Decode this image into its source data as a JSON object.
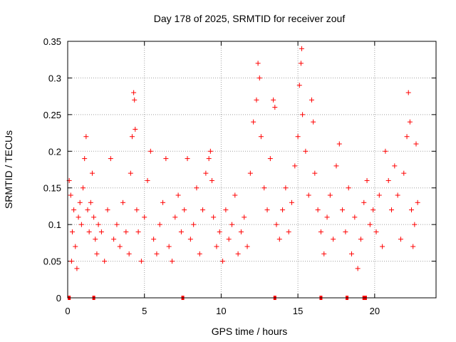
{
  "chart_data": {
    "type": "scatter",
    "title": "Day 178 of 2025, SRMTID for receiver zouf",
    "xlabel": "GPS time / hours",
    "ylabel": "SRMTID / TECUs",
    "xlim": [
      0,
      24
    ],
    "ylim": [
      0,
      0.35
    ],
    "grid": true,
    "marker": "+",
    "color": "#ff0000",
    "xticks": [
      "0",
      "5",
      "10",
      "15",
      "20"
    ],
    "xtick_values": [
      0,
      5,
      10,
      15,
      20
    ],
    "yticks": [
      "0",
      "0.05",
      "0.1",
      "0.15",
      "0.2",
      "0.25",
      "0.3",
      "0.35"
    ],
    "ytick_values": [
      0,
      0.05,
      0.1,
      0.15,
      0.2,
      0.25,
      0.3,
      0.35
    ],
    "series": [
      {
        "values_xy": [
          [
            0.1,
            0.16
          ],
          [
            0.2,
            0.14
          ],
          [
            0.25,
            0.05
          ],
          [
            0.3,
            0.09
          ],
          [
            0.4,
            0.12
          ],
          [
            0.5,
            0.07
          ],
          [
            0.6,
            0.04
          ],
          [
            0.7,
            0.11
          ],
          [
            0.8,
            0.13
          ],
          [
            0.9,
            0.1
          ],
          [
            1.0,
            0.15
          ],
          [
            1.1,
            0.19
          ],
          [
            1.2,
            0.22
          ],
          [
            1.3,
            0.12
          ],
          [
            1.4,
            0.09
          ],
          [
            1.5,
            0.13
          ],
          [
            1.6,
            0.17
          ],
          [
            1.7,
            0.11
          ],
          [
            1.8,
            0.08
          ],
          [
            1.9,
            0.06
          ],
          [
            2.0,
            0.1
          ],
          [
            2.2,
            0.09
          ],
          [
            2.4,
            0.05
          ],
          [
            2.6,
            0.12
          ],
          [
            2.8,
            0.19
          ],
          [
            3.0,
            0.08
          ],
          [
            3.2,
            0.1
          ],
          [
            3.4,
            0.07
          ],
          [
            3.6,
            0.13
          ],
          [
            3.8,
            0.09
          ],
          [
            4.0,
            0.06
          ],
          [
            4.1,
            0.17
          ],
          [
            4.2,
            0.22
          ],
          [
            4.3,
            0.28
          ],
          [
            4.35,
            0.27
          ],
          [
            4.4,
            0.23
          ],
          [
            4.5,
            0.12
          ],
          [
            4.6,
            0.09
          ],
          [
            4.8,
            0.05
          ],
          [
            5.0,
            0.11
          ],
          [
            5.2,
            0.16
          ],
          [
            5.4,
            0.2
          ],
          [
            5.6,
            0.08
          ],
          [
            5.8,
            0.06
          ],
          [
            6.0,
            0.1
          ],
          [
            6.2,
            0.13
          ],
          [
            6.4,
            0.19
          ],
          [
            6.6,
            0.07
          ],
          [
            6.8,
            0.05
          ],
          [
            7.0,
            0.11
          ],
          [
            7.2,
            0.14
          ],
          [
            7.4,
            0.09
          ],
          [
            7.6,
            0.12
          ],
          [
            7.8,
            0.19
          ],
          [
            8.0,
            0.08
          ],
          [
            8.2,
            0.1
          ],
          [
            8.4,
            0.15
          ],
          [
            8.6,
            0.06
          ],
          [
            8.8,
            0.12
          ],
          [
            9.0,
            0.17
          ],
          [
            9.2,
            0.19
          ],
          [
            9.3,
            0.2
          ],
          [
            9.4,
            0.16
          ],
          [
            9.5,
            0.11
          ],
          [
            9.7,
            0.07
          ],
          [
            9.9,
            0.09
          ],
          [
            10.1,
            0.05
          ],
          [
            10.3,
            0.12
          ],
          [
            10.5,
            0.08
          ],
          [
            10.7,
            0.1
          ],
          [
            10.9,
            0.14
          ],
          [
            11.1,
            0.06
          ],
          [
            11.3,
            0.09
          ],
          [
            11.5,
            0.11
          ],
          [
            11.7,
            0.07
          ],
          [
            11.9,
            0.17
          ],
          [
            12.1,
            0.24
          ],
          [
            12.3,
            0.27
          ],
          [
            12.4,
            0.32
          ],
          [
            12.5,
            0.3
          ],
          [
            12.6,
            0.22
          ],
          [
            12.8,
            0.15
          ],
          [
            13.0,
            0.12
          ],
          [
            13.2,
            0.19
          ],
          [
            13.4,
            0.27
          ],
          [
            13.5,
            0.26
          ],
          [
            13.6,
            0.1
          ],
          [
            13.8,
            0.08
          ],
          [
            14.0,
            0.12
          ],
          [
            14.2,
            0.15
          ],
          [
            14.4,
            0.09
          ],
          [
            14.6,
            0.13
          ],
          [
            14.8,
            0.18
          ],
          [
            15.0,
            0.22
          ],
          [
            15.1,
            0.29
          ],
          [
            15.2,
            0.32
          ],
          [
            15.25,
            0.34
          ],
          [
            15.3,
            0.25
          ],
          [
            15.5,
            0.2
          ],
          [
            15.7,
            0.14
          ],
          [
            15.9,
            0.27
          ],
          [
            16.0,
            0.24
          ],
          [
            16.1,
            0.17
          ],
          [
            16.3,
            0.12
          ],
          [
            16.5,
            0.09
          ],
          [
            16.7,
            0.06
          ],
          [
            16.9,
            0.11
          ],
          [
            17.1,
            0.14
          ],
          [
            17.3,
            0.08
          ],
          [
            17.5,
            0.18
          ],
          [
            17.7,
            0.21
          ],
          [
            17.9,
            0.12
          ],
          [
            18.1,
            0.09
          ],
          [
            18.3,
            0.15
          ],
          [
            18.5,
            0.06
          ],
          [
            18.7,
            0.11
          ],
          [
            18.9,
            0.04
          ],
          [
            19.1,
            0.08
          ],
          [
            19.3,
            0.13
          ],
          [
            19.5,
            0.16
          ],
          [
            19.7,
            0.1
          ],
          [
            19.9,
            0.12
          ],
          [
            20.1,
            0.09
          ],
          [
            20.3,
            0.14
          ],
          [
            20.5,
            0.07
          ],
          [
            20.7,
            0.2
          ],
          [
            20.9,
            0.16
          ],
          [
            21.1,
            0.12
          ],
          [
            21.3,
            0.18
          ],
          [
            21.5,
            0.14
          ],
          [
            21.7,
            0.08
          ],
          [
            21.9,
            0.17
          ],
          [
            22.1,
            0.22
          ],
          [
            22.2,
            0.28
          ],
          [
            22.3,
            0.24
          ],
          [
            22.4,
            0.12
          ],
          [
            22.5,
            0.07
          ],
          [
            22.6,
            0.1
          ],
          [
            22.7,
            0.21
          ],
          [
            22.8,
            0.13
          ]
        ]
      }
    ],
    "baseline_points_x": [
      0.1,
      1.7,
      7.5,
      13.5,
      16.5,
      18.2,
      19.3,
      19.4
    ]
  }
}
